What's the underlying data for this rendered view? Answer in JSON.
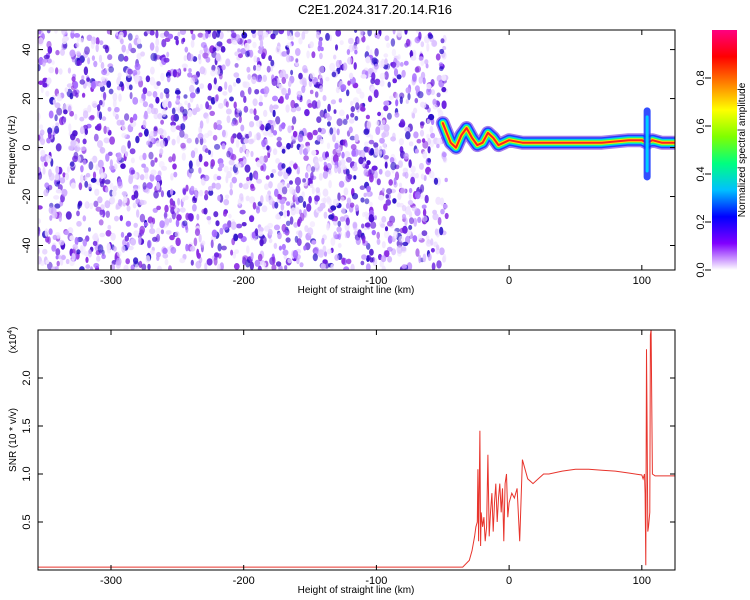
{
  "chart_data": [
    {
      "type": "heatmap",
      "title": "C2E1.2024.317.20.14.R16",
      "xlabel": "Height of straight line (km)",
      "ylabel": "Frequency (Hz)",
      "xlim": [
        -355,
        125
      ],
      "ylim": [
        -50,
        48
      ],
      "xticks": [
        -300,
        -200,
        -100,
        0,
        100
      ],
      "xtick_labels": [
        "-300",
        "-200",
        "-100",
        "0",
        "100"
      ],
      "yticks": [
        -40,
        -20,
        0,
        20,
        40
      ],
      "ytick_labels": [
        "-40",
        "-20",
        "0",
        "20",
        "40"
      ],
      "colorbar": {
        "label": "Normalized spectral amplitude",
        "range": [
          0,
          1
        ],
        "ticks": [
          0,
          0.2,
          0.4,
          0.6,
          0.8
        ],
        "tick_labels": [
          "0.0",
          "0.2",
          "0.4",
          "0.6",
          "0.8"
        ],
        "colors": [
          "#ffffff",
          "#8000ff",
          "#0000ff",
          "#00c0ff",
          "#00ff80",
          "#80ff00",
          "#ffff00",
          "#ff8000",
          "#ff0000",
          "#ff0080"
        ]
      },
      "noise_region_x": [
        -355,
        -47
      ],
      "ridge": {
        "x": [
          -50,
          -47,
          -44,
          -40,
          -36,
          -32,
          -28,
          -24,
          -20,
          -16,
          -12,
          -8,
          -4,
          0,
          10,
          30,
          50,
          70,
          90,
          100,
          104,
          108,
          115,
          125
        ],
        "y": [
          10,
          6,
          2,
          0,
          5,
          8,
          4,
          1,
          2,
          6,
          4,
          1,
          2,
          3,
          2,
          2,
          2,
          2,
          3,
          3,
          2,
          3,
          2,
          2
        ]
      },
      "feature_x": 104
    },
    {
      "type": "line",
      "xlabel": "Height of straight line (km)",
      "ylabel": "SNR (10 * v/v)",
      "multiplier_label": "(x10",
      "multiplier_exp": "4",
      "multiplier_close": ")",
      "xlim": [
        -355,
        125
      ],
      "ylim": [
        0,
        2.5
      ],
      "xticks": [
        -300,
        -200,
        -100,
        0,
        100
      ],
      "xtick_labels": [
        "-300",
        "-200",
        "-100",
        "0",
        "100"
      ],
      "yticks": [
        0.5,
        1.0,
        1.5,
        2.0
      ],
      "ytick_labels": [
        "0.5",
        "1.0",
        "1.5",
        "2.0"
      ],
      "series": [
        {
          "name": "SNR",
          "color": "#e8342c",
          "x": [
            -355,
            -100,
            -35,
            -30,
            -28,
            -26,
            -25,
            -24,
            -23.5,
            -23,
            -22,
            -21.5,
            -21,
            -20,
            -19,
            -18,
            -17,
            -16,
            -15,
            -14,
            -13,
            -12,
            -11,
            -10,
            -9,
            -8,
            -7,
            -6,
            -5,
            -4,
            -3,
            -2,
            -1,
            0,
            2,
            4,
            6,
            8,
            10,
            14,
            18,
            22,
            26,
            30,
            40,
            50,
            60,
            70,
            80,
            90,
            100,
            101,
            102,
            102.5,
            103,
            103.5,
            104,
            104.5,
            105,
            106,
            106.5,
            107,
            108,
            110,
            115,
            125
          ],
          "y": [
            0.03,
            0.03,
            0.03,
            0.1,
            0.2,
            0.35,
            0.45,
            0.5,
            1.05,
            0.3,
            1.45,
            0.25,
            0.6,
            0.45,
            0.55,
            0.3,
            0.45,
            1.2,
            0.35,
            0.6,
            0.8,
            0.4,
            0.7,
            0.9,
            0.5,
            0.75,
            0.9,
            0.6,
            0.85,
            0.3,
            0.9,
            1.0,
            0.55,
            0.7,
            0.8,
            0.75,
            0.85,
            0.3,
            1.15,
            0.95,
            0.9,
            0.95,
            1.0,
            1.0,
            1.03,
            1.05,
            1.05,
            1.04,
            1.03,
            1.01,
            0.99,
            0.95,
            1.0,
            0.8,
            0.05,
            2.3,
            1.5,
            0.4,
            0.45,
            0.6,
            2.45,
            2.5,
            1.0,
            0.98,
            0.98,
            0.98
          ]
        }
      ]
    }
  ]
}
